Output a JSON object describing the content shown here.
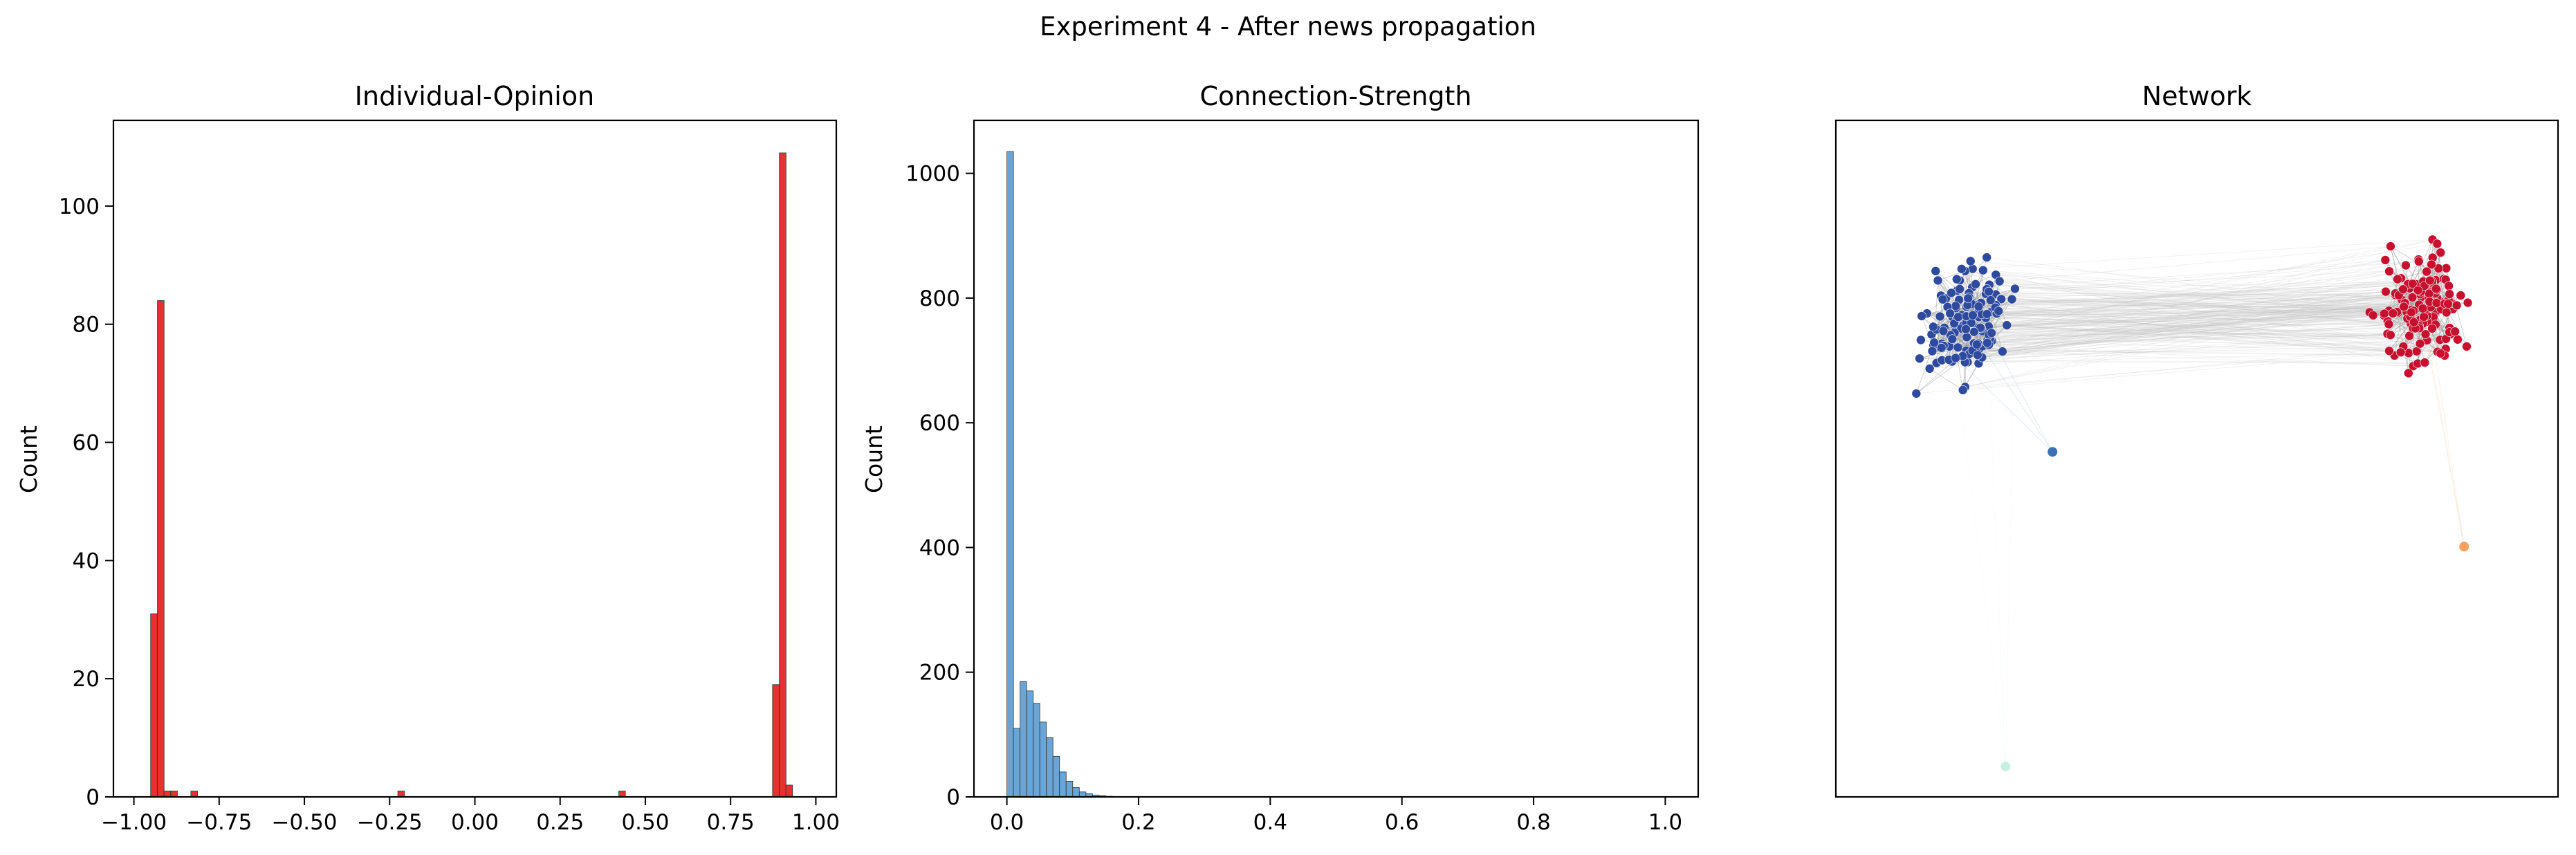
{
  "figure": {
    "suptitle": "Experiment 4 - After news propagation"
  },
  "chart_data": [
    {
      "type": "bar",
      "title": "Individual-Opinion",
      "xlabel": "",
      "ylabel": "Count",
      "xlim": [
        -1.06,
        1.06
      ],
      "ylim": [
        0,
        114.5
      ],
      "xticks": [
        -1.0,
        -0.75,
        -0.5,
        -0.25,
        0.0,
        0.25,
        0.5,
        0.75,
        1.0
      ],
      "xtick_labels": [
        "−1.00",
        "−0.75",
        "−0.50",
        "−0.25",
        "0.00",
        "0.25",
        "0.50",
        "0.75",
        "1.00"
      ],
      "yticks": [
        0,
        20,
        40,
        60,
        80,
        100
      ],
      "ytick_labels": [
        "0",
        "20",
        "40",
        "60",
        "80",
        "100"
      ],
      "bin_width": 0.0196,
      "bins": [
        {
          "x0": -0.951,
          "count": 31
        },
        {
          "x0": -0.931,
          "count": 84
        },
        {
          "x0": -0.912,
          "count": 1
        },
        {
          "x0": -0.892,
          "count": 1
        },
        {
          "x0": -0.833,
          "count": 1
        },
        {
          "x0": -0.226,
          "count": 1
        },
        {
          "x0": 0.422,
          "count": 1
        },
        {
          "x0": 0.873,
          "count": 19
        },
        {
          "x0": 0.893,
          "count": 109
        },
        {
          "x0": 0.912,
          "count": 2
        }
      ],
      "color": "#e41a1c",
      "grid": false
    },
    {
      "type": "bar",
      "title": "Connection-Strength",
      "xlabel": "",
      "ylabel": "Count",
      "xlim": [
        -0.05,
        1.05
      ],
      "ylim": [
        0,
        1085
      ],
      "xticks": [
        0.0,
        0.2,
        0.4,
        0.6,
        0.8,
        1.0
      ],
      "xtick_labels": [
        "0.0",
        "0.2",
        "0.4",
        "0.6",
        "0.8",
        "1.0"
      ],
      "yticks": [
        0,
        200,
        400,
        600,
        800,
        1000
      ],
      "ytick_labels": [
        "0",
        "200",
        "400",
        "600",
        "800",
        "1000"
      ],
      "bin_width": 0.01,
      "bins": [
        {
          "x0": 0.0,
          "count": 1035
        },
        {
          "x0": 0.01,
          "count": 110
        },
        {
          "x0": 0.02,
          "count": 185
        },
        {
          "x0": 0.03,
          "count": 170
        },
        {
          "x0": 0.04,
          "count": 150
        },
        {
          "x0": 0.05,
          "count": 120
        },
        {
          "x0": 0.06,
          "count": 95
        },
        {
          "x0": 0.07,
          "count": 65
        },
        {
          "x0": 0.08,
          "count": 40
        },
        {
          "x0": 0.09,
          "count": 25
        },
        {
          "x0": 0.1,
          "count": 15
        },
        {
          "x0": 0.11,
          "count": 8
        },
        {
          "x0": 0.12,
          "count": 5
        },
        {
          "x0": 0.13,
          "count": 3
        },
        {
          "x0": 0.14,
          "count": 2
        },
        {
          "x0": 0.15,
          "count": 1
        }
      ],
      "color": "#5b9bd0",
      "grid": false
    },
    {
      "type": "scatter",
      "title": "Network",
      "subtype": "network-graph",
      "axes_visible": false,
      "communities": [
        {
          "color": "#2e4a9e",
          "node_count": 140,
          "center": [
            0.18,
            0.7
          ],
          "spread": [
            0.11,
            0.16
          ]
        },
        {
          "color": "#c8102e",
          "node_count": 140,
          "center": [
            0.81,
            0.72
          ],
          "spread": [
            0.11,
            0.16
          ]
        }
      ],
      "isolated_nodes": [
        {
          "color": "#3b6fb6",
          "x": 0.3,
          "y": 0.51
        },
        {
          "color": "#f4a261",
          "x": 0.87,
          "y": 0.37
        },
        {
          "color": "#c7f0e0",
          "x": 0.235,
          "y": 0.045
        }
      ],
      "edge_color": "#bdbdbd"
    }
  ]
}
